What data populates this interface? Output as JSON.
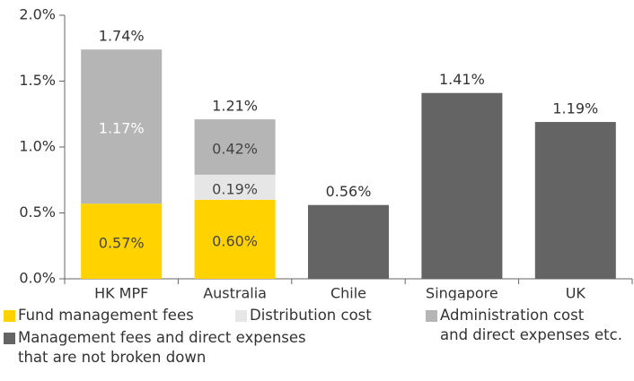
{
  "chart_data": {
    "type": "stacked_bar",
    "categories": [
      "HK MPF",
      "Australia",
      "Chile",
      "Singapore",
      "UK"
    ],
    "series": [
      {
        "name": "Fund management fees",
        "color": "#ffd200",
        "values": [
          0.57,
          0.6,
          null,
          null,
          null
        ],
        "value_labels": [
          "0.57%",
          "0.60%",
          null,
          null,
          null
        ]
      },
      {
        "name": "Distribution cost",
        "color": "#e6e6e6",
        "values": [
          null,
          0.19,
          null,
          null,
          null
        ],
        "value_labels": [
          null,
          "0.19%",
          null,
          null,
          null
        ]
      },
      {
        "name": "Administration cost\nand direct expenses etc.",
        "color": "#b5b5b5",
        "values": [
          1.17,
          0.42,
          null,
          null,
          null
        ],
        "value_labels": [
          "1.17%",
          "0.42%",
          null,
          null,
          null
        ]
      },
      {
        "name": "Management fees and direct expenses\nthat are not broken down",
        "color": "#646464",
        "values": [
          null,
          null,
          0.56,
          1.41,
          1.19
        ],
        "value_labels": [
          null,
          null,
          "0.56%",
          "1.41%",
          "1.19%"
        ]
      }
    ],
    "totals": [
      1.74,
      1.21,
      null,
      null,
      null
    ],
    "total_labels": [
      "1.74%",
      "1.21%",
      null,
      null,
      null
    ],
    "ylim": [
      0,
      2.0
    ],
    "yticks": [
      {
        "value": 0,
        "label": "0.0%"
      },
      {
        "value": 0.5,
        "label": "0.5%"
      },
      {
        "value": 1.0,
        "label": "1.0%"
      },
      {
        "value": 1.5,
        "label": "1.5%"
      },
      {
        "value": 2.0,
        "label": "2.0%"
      }
    ]
  }
}
